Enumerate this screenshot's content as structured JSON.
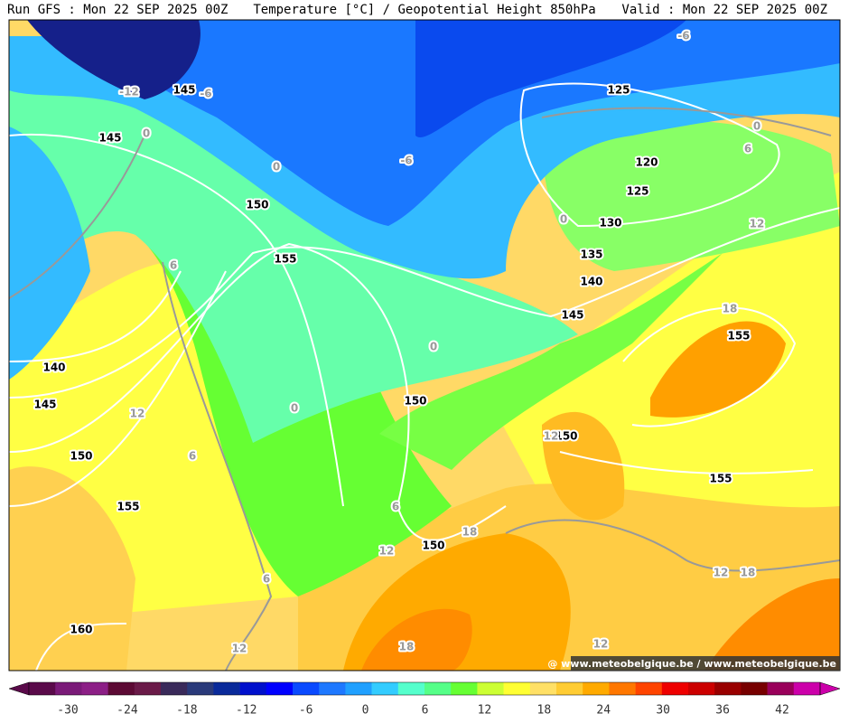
{
  "header": {
    "left": "Run GFS : Mon 22 SEP 2025 00Z",
    "center": "Temperature [°C] / Geopotential Height 850hPa",
    "right": "Valid : Mon 22 SEP 2025 00Z"
  },
  "map": {
    "height_labels": [
      "145",
      "125",
      "145",
      "120",
      "125",
      "150",
      "130",
      "155",
      "135",
      "140",
      "145",
      "155",
      "140",
      "145",
      "150",
      "150",
      "150",
      "155",
      "155",
      "150",
      "160"
    ],
    "temperature_labels": [
      "-12",
      "-6",
      "-6",
      "0",
      "0",
      "-6",
      "0",
      "6",
      "0",
      "12",
      "6",
      "18",
      "0",
      "0",
      "12",
      "12",
      "6",
      "6",
      "18",
      "12",
      "6",
      "12",
      "18",
      "12",
      "18",
      "12"
    ],
    "credit": "@ www.meteobelgique.be / www.meteobelgique.be"
  },
  "colorbar": {
    "ticks": [
      -30,
      -24,
      -18,
      -12,
      -6,
      0,
      6,
      12,
      18,
      24,
      30,
      36,
      42
    ],
    "colors": [
      "#5a0a4a",
      "#7a1a78",
      "#8c1f86",
      "#5c0a34",
      "#6a1a48",
      "#3a2a5a",
      "#2a3a7a",
      "#0a2a9a",
      "#0010cc",
      "#0000ff",
      "#0a4aff",
      "#1e78ff",
      "#20a0ff",
      "#33ccff",
      "#55ffcc",
      "#55ff88",
      "#66ff33",
      "#ccff33",
      "#ffff33",
      "#ffe066",
      "#ffcc33",
      "#ffaa00",
      "#ff7700",
      "#ff4400",
      "#ee0000",
      "#cc0000",
      "#990000",
      "#770000",
      "#99005a",
      "#cc00aa"
    ]
  }
}
